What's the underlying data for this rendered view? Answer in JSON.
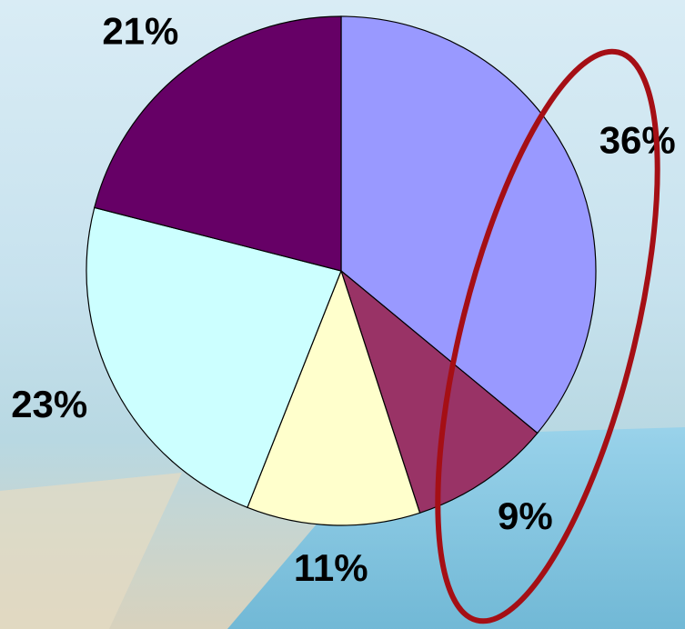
{
  "chart_data": {
    "type": "pie",
    "values": [
      36,
      9,
      11,
      23,
      21
    ],
    "value_labels": [
      "36%",
      "9%",
      "11%",
      "23%",
      "21%"
    ],
    "colors": [
      "#9999ff",
      "#993366",
      "#ffffcc",
      "#ccffff",
      "#660066"
    ]
  }
}
